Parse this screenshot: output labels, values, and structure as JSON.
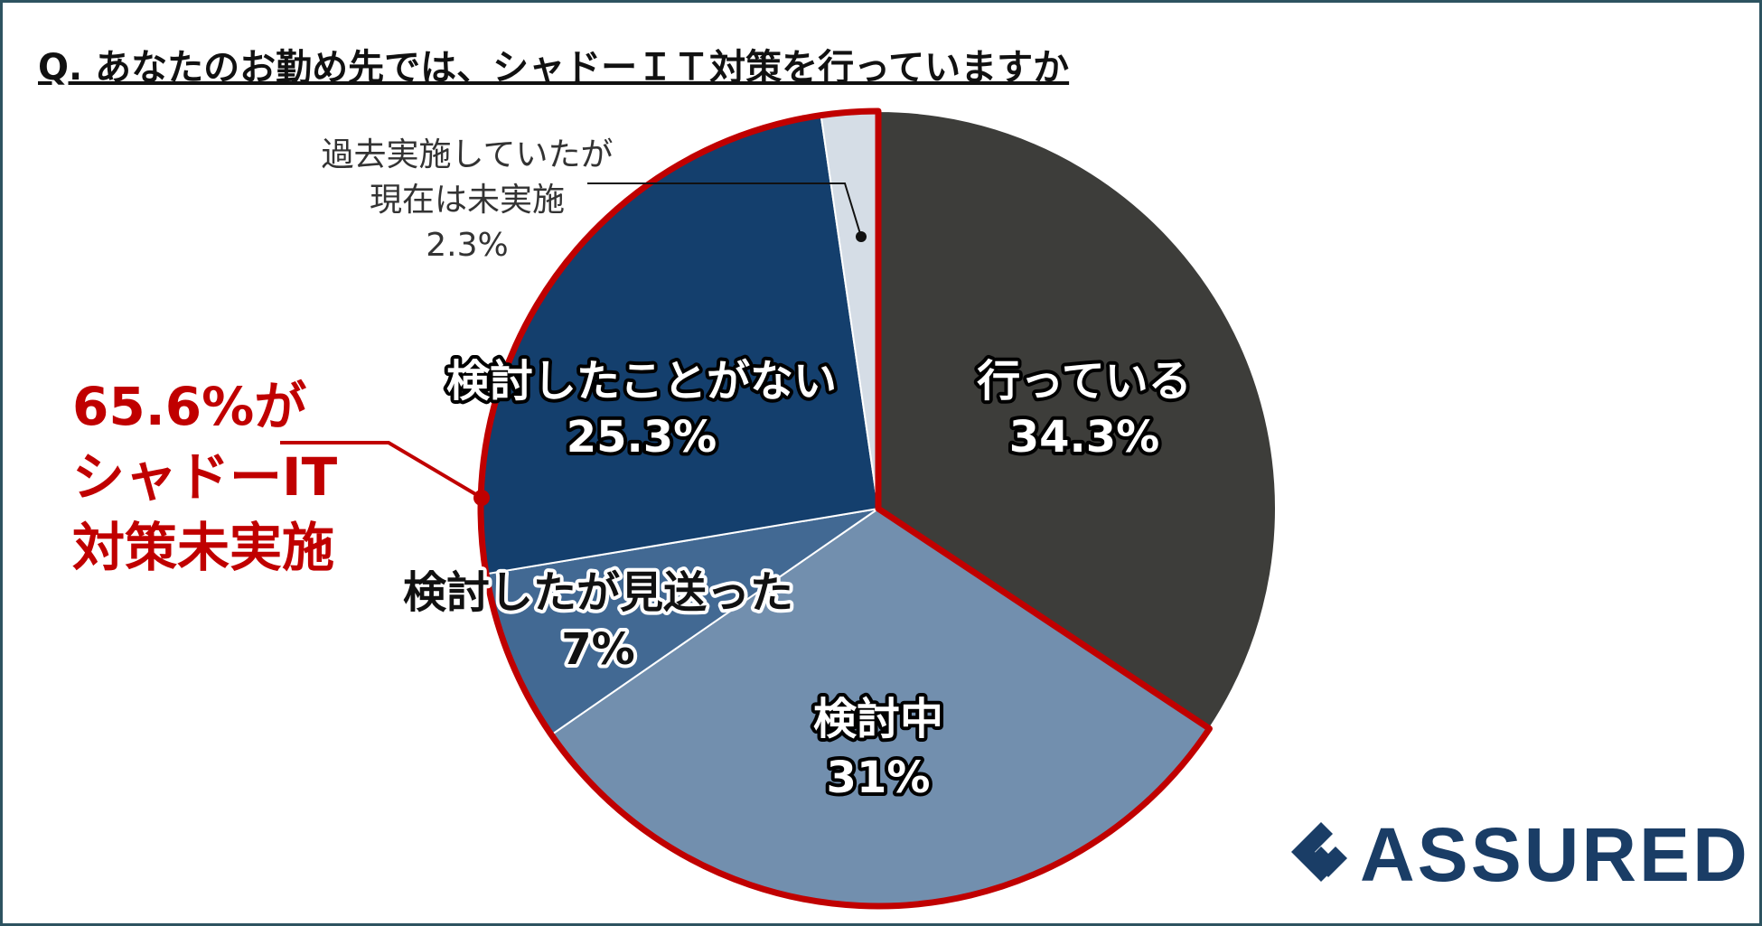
{
  "title": "Q. あなたのお勤め先では、シャドーＩＴ対策を行っていますか",
  "chart_data": {
    "type": "pie",
    "title": "Q. あなたのお勤め先では、シャドーＩＴ対策を行っていますか",
    "start": "12 o'clock, clockwise",
    "slices": [
      {
        "label": "行っている",
        "value": 34.3,
        "value_label": "34.3%",
        "color": "#3d3d3a"
      },
      {
        "label": "検討中",
        "value": 31,
        "value_label": "31%",
        "color": "#728fae"
      },
      {
        "label": "検討したが見送った",
        "value": 7,
        "value_label": "7%",
        "color": "#426993"
      },
      {
        "label": "検討したことがない",
        "value": 25.3,
        "value_label": "25.3%",
        "color": "#143f6d"
      },
      {
        "label": "過去実施していたが現在は未実施",
        "value": 2.3,
        "value_label": "2.3%",
        "color": "#d5dde6"
      }
    ],
    "highlight": {
      "lines": [
        "65.6%が",
        "シャドーIT",
        "対策未実施"
      ],
      "color": "#c00000"
    }
  },
  "small_label": {
    "line1": "過去実施していたが",
    "line2": "現在は未実施",
    "value": "2.3%"
  },
  "logo": {
    "text": "ASSURED",
    "color": "#1a3d66"
  }
}
